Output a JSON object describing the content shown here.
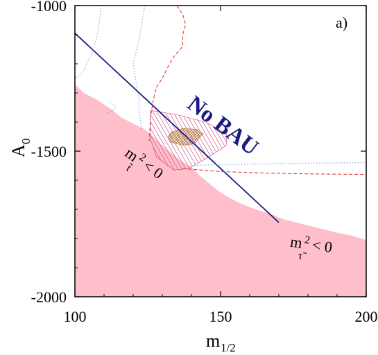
{
  "chart_data": {
    "type": "area",
    "xlabel_main": "m",
    "xlabel_sub": "1/2",
    "ylabel_main": "A",
    "ylabel_sub": "0",
    "panel_label": "a)",
    "xlim": [
      100,
      200
    ],
    "ylim": [
      -2000,
      -1000
    ],
    "x_ticks": [
      100,
      150,
      200
    ],
    "x_tick_labels": [
      "100",
      "150",
      "200"
    ],
    "y_ticks": [
      -2000,
      -1500,
      -1000
    ],
    "y_tick_labels": [
      "-2000",
      "-1500",
      "-1000"
    ],
    "annotations": {
      "no_bau": "No BAU",
      "stop_m": "m",
      "stop_sup": "2",
      "stop_cond": "< 0",
      "stop_sub": "t̃",
      "stau_m": "m",
      "stau_sup": "2",
      "stau_cond": "< 0",
      "stau_sub": "τ̃"
    },
    "excluded_region": {
      "color": "#ffbfca",
      "boundary": [
        [
          100,
          -1270
        ],
        [
          103,
          -1300
        ],
        [
          107,
          -1320
        ],
        [
          110,
          -1340
        ],
        [
          113,
          -1360
        ],
        [
          116,
          -1385
        ],
        [
          119,
          -1400
        ],
        [
          121,
          -1410
        ],
        [
          124,
          -1425
        ],
        [
          127,
          -1450
        ],
        [
          130,
          -1480
        ],
        [
          133,
          -1505
        ],
        [
          136,
          -1530
        ],
        [
          140,
          -1555
        ],
        [
          143,
          -1585
        ],
        [
          146,
          -1610
        ],
        [
          149,
          -1635
        ],
        [
          153,
          -1660
        ],
        [
          157,
          -1680
        ],
        [
          162,
          -1700
        ],
        [
          167,
          -1715
        ],
        [
          172,
          -1735
        ],
        [
          178,
          -1750
        ],
        [
          184,
          -1765
        ],
        [
          190,
          -1780
        ],
        [
          195,
          -1790
        ],
        [
          200,
          -1805
        ]
      ]
    },
    "series": [
      {
        "style": "solid",
        "color": "#1a1a80",
        "x": [
          100,
          170
        ],
        "y": [
          -1095,
          -1745
        ]
      },
      {
        "style": "dashed",
        "color": "#e03a2a",
        "x": [
          135,
          137,
          138,
          137,
          137,
          134,
          132,
          130,
          128,
          127,
          126,
          125.5
        ],
        "y": [
          -1000,
          -1030,
          -1065,
          -1100,
          -1140,
          -1175,
          -1210,
          -1250,
          -1280,
          -1320,
          -1380,
          -1465
        ]
      },
      {
        "style": "dashed",
        "color": "#e03a2a",
        "x": [
          137,
          150,
          165,
          180,
          200
        ],
        "y": [
          -1560,
          -1570,
          -1575,
          -1578,
          -1580
        ]
      },
      {
        "style": "dotted",
        "color": "#6fa8d8",
        "x": [
          109,
          108,
          106,
          104,
          103,
          101.5,
          100
        ],
        "y": [
          -1000,
          -1090,
          -1160,
          -1200,
          -1225,
          -1240,
          -1250
        ]
      },
      {
        "style": "dotted",
        "color": "#6fa8d8",
        "x": [
          124,
          123,
          122,
          121,
          120,
          121,
          122,
          122,
          123
        ],
        "y": [
          -1000,
          -1060,
          -1120,
          -1160,
          -1200,
          -1260,
          -1320,
          -1360,
          -1430
        ]
      },
      {
        "style": "dotted",
        "color": "#6fa8d8",
        "x": [
          112,
          114,
          113,
          111
        ],
        "y": [
          -1330,
          -1350,
          -1360,
          -1370
        ]
      },
      {
        "style": "dotted",
        "color": "#6fa8d8",
        "x": [
          140,
          150,
          160,
          175,
          190,
          200
        ],
        "y": [
          -1550,
          -1545,
          -1545,
          -1542,
          -1540,
          -1540
        ]
      }
    ],
    "hatched_regions": [
      {
        "color": "#c83a7a",
        "pattern": "diagonal",
        "polygon": [
          [
            126,
            -1360
          ],
          [
            135,
            -1375
          ],
          [
            145,
            -1400
          ],
          [
            152,
            -1440
          ],
          [
            152,
            -1480
          ],
          [
            146,
            -1520
          ],
          [
            139,
            -1560
          ],
          [
            134,
            -1565
          ],
          [
            128,
            -1520
          ],
          [
            126,
            -1460
          ]
        ]
      },
      {
        "color": "#b07a3a",
        "pattern": "crosshatch",
        "polygon": [
          [
            133,
            -1435
          ],
          [
            137,
            -1422
          ],
          [
            142,
            -1425
          ],
          [
            144,
            -1440
          ],
          [
            141,
            -1475
          ],
          [
            137,
            -1480
          ],
          [
            133,
            -1470
          ],
          [
            132,
            -1450
          ]
        ]
      }
    ]
  }
}
